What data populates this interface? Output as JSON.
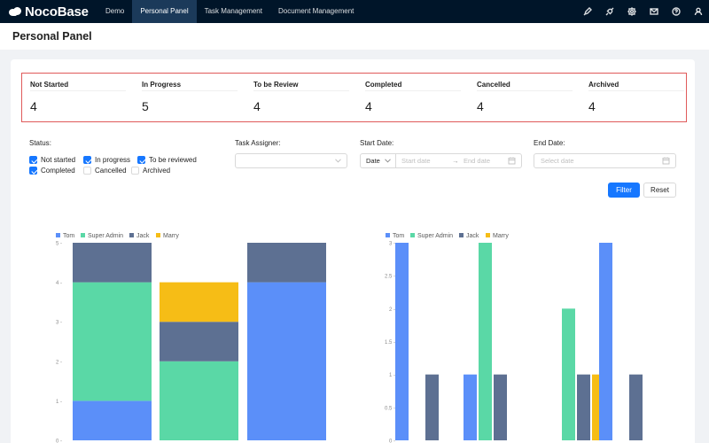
{
  "app": {
    "logo_text": "NocoBase",
    "nav": [
      "Demo",
      "Personal Panel",
      "Task Management",
      "Document Management"
    ],
    "active_nav": 1,
    "toolbar_icons": [
      "pen-icon",
      "plugin-icon",
      "settings-icon",
      "mail-icon",
      "help-icon",
      "user-icon"
    ]
  },
  "page": {
    "title": "Personal Panel"
  },
  "stats": [
    {
      "label": "Not Started",
      "value": "4"
    },
    {
      "label": "In Progress",
      "value": "5"
    },
    {
      "label": "To be Review",
      "value": "4"
    },
    {
      "label": "Completed",
      "value": "4"
    },
    {
      "label": "Cancelled",
      "value": "4"
    },
    {
      "label": "Archived",
      "value": "4"
    }
  ],
  "filters": {
    "status_label": "Status",
    "statuses": [
      {
        "label": "Not started",
        "checked": true
      },
      {
        "label": "In progress",
        "checked": true
      },
      {
        "label": "To be reviewed",
        "checked": true
      },
      {
        "label": "Completed",
        "checked": true
      },
      {
        "label": "Cancelled",
        "checked": false
      },
      {
        "label": "Archived",
        "checked": false
      }
    ],
    "assigner_label": "Task Assigner",
    "start_date_label": "Start Date",
    "start_date_type": "Date",
    "start_date_placeholder": "Start date",
    "end_date_placeholder": "End date",
    "end_date_label": "End Date",
    "end_date_select_placeholder": "Select date",
    "filter_button": "Filter",
    "reset_button": "Reset"
  },
  "colors": {
    "Tom": "#5b8ff9",
    "Super Admin": "#5ad8a6",
    "Jack": "#5d7092",
    "Marry": "#f6bd16"
  },
  "chart_data": [
    {
      "type": "bar",
      "stacked": true,
      "legend": [
        "Tom",
        "Super Admin",
        "Jack",
        "Marry"
      ],
      "legend_position": "top-left",
      "ylim": [
        0,
        5
      ],
      "yticks": [
        0,
        1,
        2,
        3,
        4,
        5
      ],
      "series": [
        {
          "name": "Tom",
          "values": [
            1,
            0,
            4
          ]
        },
        {
          "name": "Super Admin",
          "values": [
            3,
            2,
            0
          ]
        },
        {
          "name": "Jack",
          "values": [
            1,
            1,
            1
          ]
        },
        {
          "name": "Marry",
          "values": [
            0,
            1,
            0
          ]
        }
      ]
    },
    {
      "type": "bar",
      "stacked": false,
      "legend": [
        "Tom",
        "Super Admin",
        "Jack",
        "Marry"
      ],
      "legend_position": "top-left",
      "ylim": [
        0,
        3
      ],
      "yticks": [
        0,
        0.5,
        1,
        1.5,
        2,
        2.5,
        3
      ],
      "series": [
        {
          "name": "Tom",
          "values": [
            3,
            1,
            0,
            3
          ]
        },
        {
          "name": "Super Admin",
          "values": [
            0,
            3,
            2,
            0
          ]
        },
        {
          "name": "Jack",
          "values": [
            1,
            1,
            1,
            1
          ]
        },
        {
          "name": "Marry",
          "values": [
            0,
            0,
            1,
            0
          ]
        }
      ]
    }
  ]
}
